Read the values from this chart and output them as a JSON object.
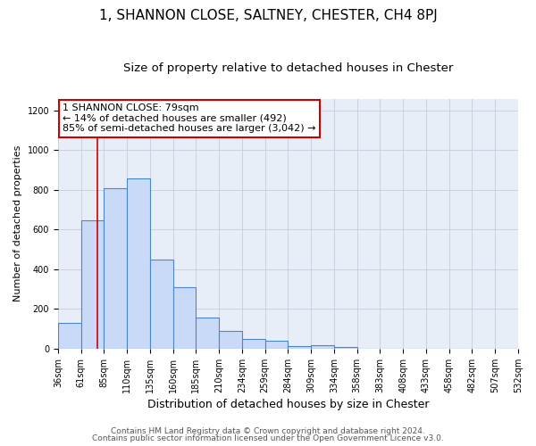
{
  "title": "1, SHANNON CLOSE, SALTNEY, CHESTER, CH4 8PJ",
  "subtitle": "Size of property relative to detached houses in Chester",
  "xlabel": "Distribution of detached houses by size in Chester",
  "ylabel": "Number of detached properties",
  "bar_labels": [
    "36sqm",
    "61sqm",
    "85sqm",
    "110sqm",
    "135sqm",
    "160sqm",
    "185sqm",
    "210sqm",
    "234sqm",
    "259sqm",
    "284sqm",
    "309sqm",
    "334sqm",
    "358sqm",
    "383sqm",
    "408sqm",
    "433sqm",
    "458sqm",
    "482sqm",
    "507sqm",
    "532sqm"
  ],
  "bar_values": [
    130,
    645,
    810,
    860,
    450,
    310,
    155,
    90,
    50,
    42,
    15,
    20,
    8,
    2,
    0,
    0,
    0,
    2,
    0,
    0,
    3
  ],
  "bar_color": "#c9daf8",
  "bar_edge_color": "#4a86c8",
  "annotation_line1": "1 SHANNON CLOSE: 79sqm",
  "annotation_line2": "← 14% of detached houses are smaller (492)",
  "annotation_line3": "85% of semi-detached houses are larger (3,042) →",
  "annotation_box_color": "#ffffff",
  "annotation_box_edge_color": "#cc0000",
  "vline_x": 79,
  "vline_color": "#cc0000",
  "ylim": [
    0,
    1260
  ],
  "yticks": [
    0,
    200,
    400,
    600,
    800,
    1000,
    1200
  ],
  "footer1": "Contains HM Land Registry data © Crown copyright and database right 2024.",
  "footer2": "Contains public sector information licensed under the Open Government Licence v3.0.",
  "title_fontsize": 11,
  "subtitle_fontsize": 9.5,
  "xlabel_fontsize": 9,
  "ylabel_fontsize": 8,
  "tick_fontsize": 7,
  "annotation_fontsize": 8,
  "footer_fontsize": 6.5,
  "plot_bg_color": "#e8eef8",
  "grid_color": "#c8ccd8"
}
